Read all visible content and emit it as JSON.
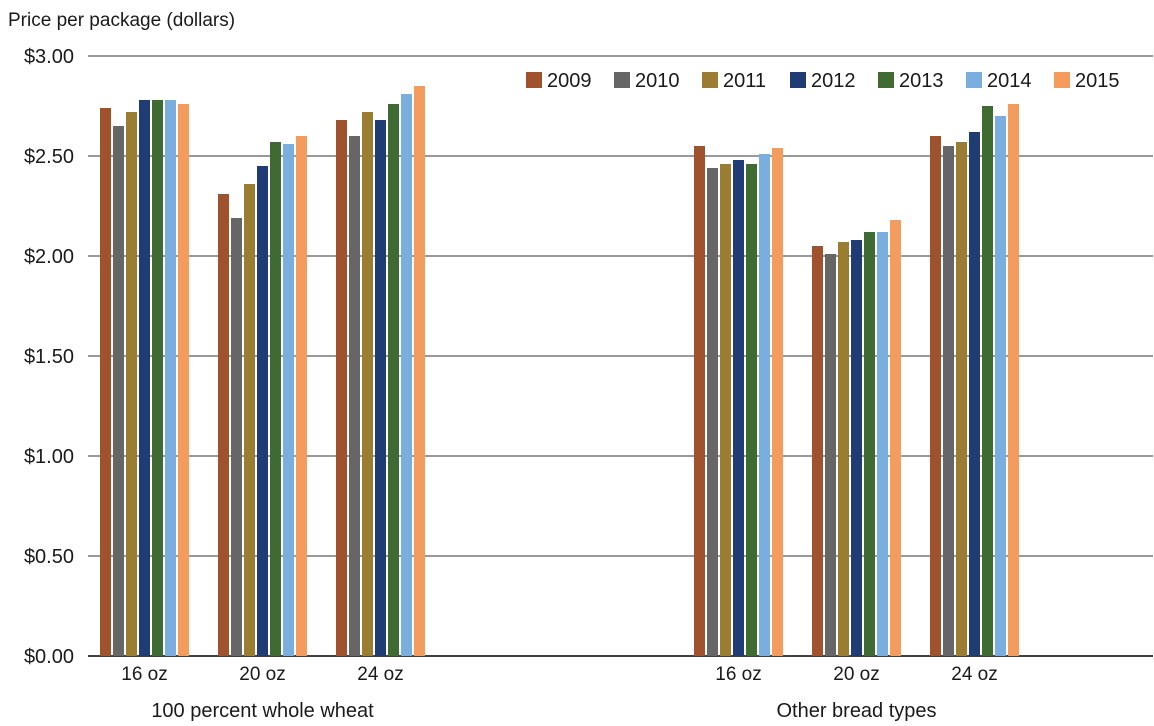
{
  "chart_data": {
    "type": "bar",
    "ylabel": "Price per package (dollars)",
    "ylim": [
      0,
      3
    ],
    "yticks": [
      0,
      0.5,
      1,
      1.5,
      2,
      2.5,
      3
    ],
    "ytick_labels": [
      "$0.00",
      "$0.50",
      "$1.00",
      "$1.50",
      "$2.00",
      "$2.50",
      "$3.00"
    ],
    "grid": true,
    "legend_position": "top-right",
    "groups": [
      {
        "label": "100 percent whole wheat",
        "categories": [
          "16 oz",
          "20 oz",
          "24 oz"
        ]
      },
      {
        "label": "Other bread types",
        "categories": [
          "16 oz",
          "20 oz",
          "24 oz"
        ]
      }
    ],
    "series": [
      {
        "name": "2009",
        "color": "#a0522d",
        "values": [
          2.74,
          2.31,
          2.68,
          2.55,
          2.05,
          2.6
        ]
      },
      {
        "name": "2010",
        "color": "#666666",
        "values": [
          2.65,
          2.19,
          2.6,
          2.44,
          2.01,
          2.55
        ]
      },
      {
        "name": "2011",
        "color": "#9b7d31",
        "values": [
          2.72,
          2.36,
          2.72,
          2.46,
          2.07,
          2.57
        ]
      },
      {
        "name": "2012",
        "color": "#1f3c75",
        "values": [
          2.78,
          2.45,
          2.68,
          2.48,
          2.08,
          2.62
        ]
      },
      {
        "name": "2013",
        "color": "#3f6b32",
        "values": [
          2.78,
          2.57,
          2.76,
          2.46,
          2.12,
          2.75
        ]
      },
      {
        "name": "2014",
        "color": "#7aaedf",
        "values": [
          2.78,
          2.56,
          2.81,
          2.51,
          2.12,
          2.7
        ]
      },
      {
        "name": "2015",
        "color": "#f49b5e",
        "values": [
          2.76,
          2.6,
          2.85,
          2.54,
          2.18,
          2.76
        ]
      }
    ]
  }
}
